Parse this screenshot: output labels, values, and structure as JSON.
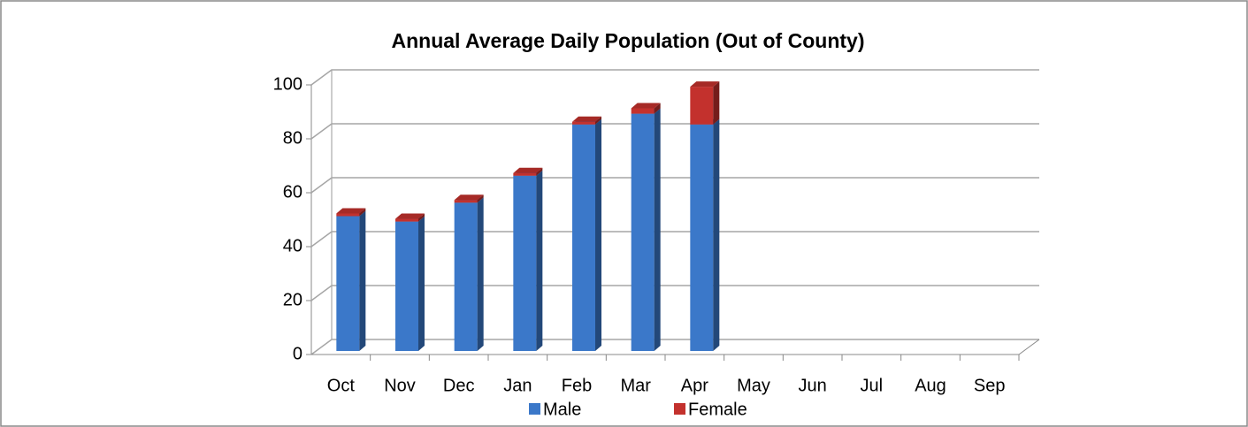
{
  "chart_data": {
    "type": "bar",
    "stacked": true,
    "title": "Annual Average Daily Population (Out of County)",
    "categories": [
      "Oct",
      "Nov",
      "Dec",
      "Jan",
      "Feb",
      "Mar",
      "Apr",
      "May",
      "Jun",
      "Jul",
      "Aug",
      "Sep"
    ],
    "series": [
      {
        "name": "Male",
        "color": "#3b78c9",
        "values": [
          50,
          48,
          55,
          65,
          84,
          88,
          84,
          null,
          null,
          null,
          null,
          null
        ]
      },
      {
        "name": "Female",
        "color": "#c3312d",
        "values": [
          1,
          1,
          1,
          1,
          1,
          2,
          14,
          null,
          null,
          null,
          null,
          null
        ]
      }
    ],
    "ylim": [
      0,
      100
    ],
    "yticks": [
      0,
      20,
      40,
      60,
      80,
      100
    ],
    "grid": true,
    "legend": "bottom"
  }
}
